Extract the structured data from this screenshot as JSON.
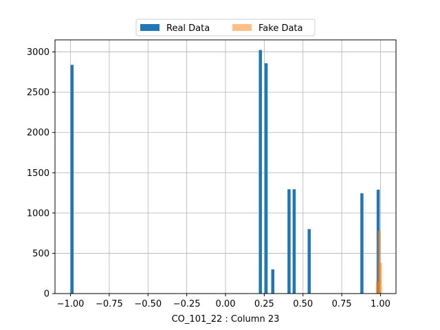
{
  "chart_data": {
    "type": "bar",
    "title": "",
    "xlabel": "CO_101_22 : Column 23",
    "ylabel": "",
    "xlim": [
      -1.1,
      1.1
    ],
    "ylim": [
      0,
      3150
    ],
    "grid": true,
    "legend_position": "top-center",
    "x_ticks": [
      -1.0,
      -0.75,
      -0.5,
      -0.25,
      0.0,
      0.25,
      0.5,
      0.75,
      1.0
    ],
    "x_tick_labels": [
      "−1.00",
      "−0.75",
      "−0.50",
      "−0.25",
      "0.00",
      "0.25",
      "0.50",
      "0.75",
      "1.00"
    ],
    "y_ticks": [
      0,
      500,
      1000,
      1500,
      2000,
      2500,
      3000
    ],
    "y_tick_labels": [
      "0",
      "500",
      "1000",
      "1500",
      "2000",
      "2500",
      "3000"
    ],
    "bin_width": 0.02,
    "series": [
      {
        "name": "Real Data",
        "color": "#1f77b4",
        "opacity": 1.0,
        "bins": [
          {
            "x": -0.99,
            "value": 2840
          },
          {
            "x": 0.225,
            "value": 3025
          },
          {
            "x": 0.262,
            "value": 2860
          },
          {
            "x": 0.305,
            "value": 300
          },
          {
            "x": 0.41,
            "value": 1295
          },
          {
            "x": 0.443,
            "value": 1295
          },
          {
            "x": 0.54,
            "value": 800
          },
          {
            "x": 0.88,
            "value": 1245
          },
          {
            "x": 0.985,
            "value": 1290
          }
        ]
      },
      {
        "name": "Fake Data",
        "color": "#ff7f0e",
        "opacity": 0.5,
        "bins": [
          {
            "x": 0.98,
            "value": 150
          },
          {
            "x": 0.99,
            "value": 780
          },
          {
            "x": 1.0,
            "value": 380
          }
        ]
      }
    ]
  }
}
